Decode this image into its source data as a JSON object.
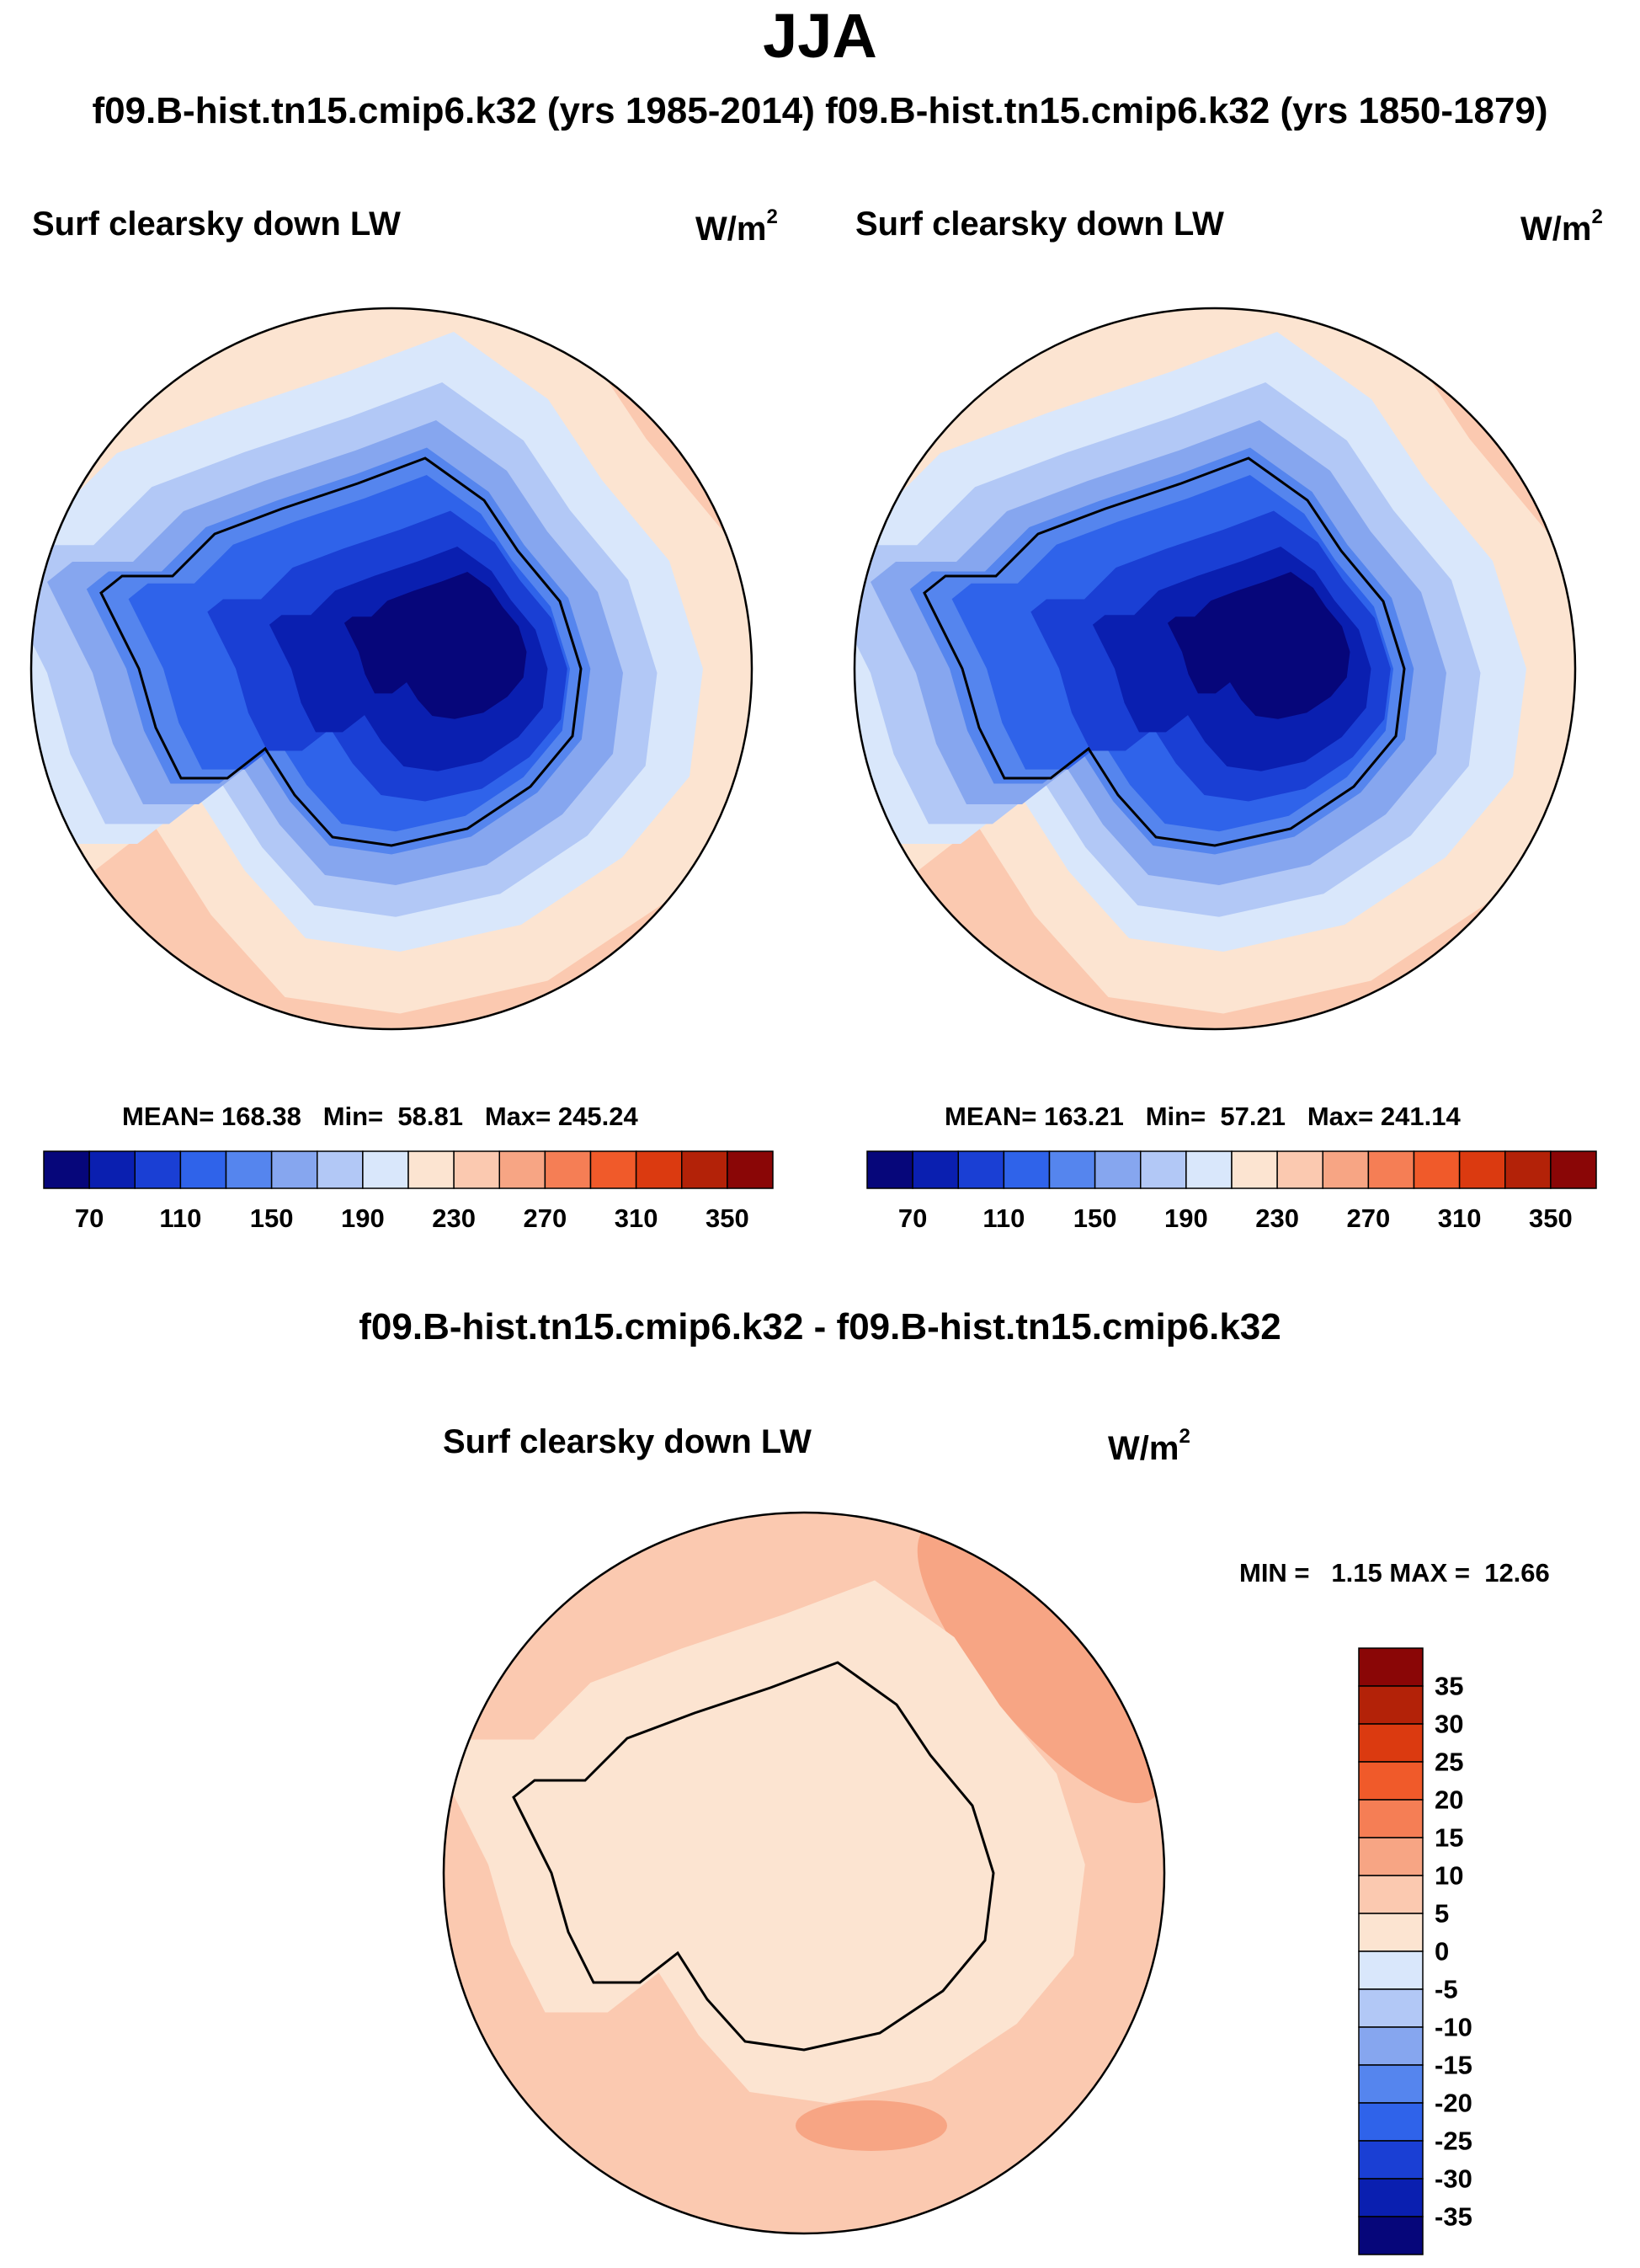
{
  "header": {
    "title": "JJA",
    "subtitle": "f09.B-hist.tn15.cmip6.k32 (yrs 1985-2014) f09.B-hist.tn15.cmip6.k32 (yrs 1850-1879)"
  },
  "colors": {
    "levels_abs": [
      "#06067a",
      "#0a1fb0",
      "#1a3fd4",
      "#2f63ea",
      "#5585ee",
      "#86a6ef",
      "#b2c8f6",
      "#d9e7fb",
      "#fce4d1",
      "#fbc9b0",
      "#f7a584",
      "#f57e55",
      "#f05a2a",
      "#db3a10",
      "#b32208",
      "#8a0606"
    ],
    "levels_diff": [
      "#06067a",
      "#0a1fb0",
      "#1a3fd4",
      "#2f63ea",
      "#5585ee",
      "#86a6ef",
      "#b2c8f6",
      "#d9e7fb",
      "#fce4d1",
      "#fbc9b0",
      "#f7a584",
      "#f57e55",
      "#f05a2a",
      "#db3a10",
      "#b32208",
      "#8a0606"
    ]
  },
  "chart_data": [
    {
      "type": "heatmap",
      "projection": "south-polar-stereographic",
      "title": "Surf clearsky down LW",
      "units_base": "W/m",
      "units_exp": "2",
      "stats": {
        "mean_label": "MEAN=",
        "mean": "168.38",
        "min_label": "Min=",
        "min": "58.81",
        "max_label": "Max=",
        "max": "245.24"
      },
      "colorbar": {
        "orientation": "horizontal",
        "levels": [
          70,
          90,
          110,
          130,
          150,
          170,
          190,
          210,
          230,
          250,
          270,
          290,
          310,
          330,
          350
        ],
        "tick_labels": [
          "70",
          "110",
          "150",
          "190",
          "230",
          "270",
          "310",
          "350"
        ]
      },
      "field_profile_levels": [
        0,
        1,
        2,
        3,
        4,
        5,
        6,
        7,
        8,
        9
      ]
    },
    {
      "type": "heatmap",
      "projection": "south-polar-stereographic",
      "title": "Surf clearsky down LW",
      "units_base": "W/m",
      "units_exp": "2",
      "stats": {
        "mean_label": "MEAN=",
        "mean": "163.21",
        "min_label": "Min=",
        "min": "57.21",
        "max_label": "Max=",
        "max": "241.14"
      },
      "colorbar": {
        "orientation": "horizontal",
        "levels": [
          70,
          90,
          110,
          130,
          150,
          170,
          190,
          210,
          230,
          250,
          270,
          290,
          310,
          330,
          350
        ],
        "tick_labels": [
          "70",
          "110",
          "150",
          "190",
          "230",
          "270",
          "310",
          "350"
        ]
      },
      "field_profile_levels": [
        0,
        1,
        2,
        3,
        4,
        5,
        6,
        7,
        8,
        9
      ]
    },
    {
      "type": "heatmap",
      "projection": "south-polar-stereographic",
      "heading": "f09.B-hist.tn15.cmip6.k32 - f09.B-hist.tn15.cmip6.k32",
      "title": "Surf clearsky down LW",
      "units_base": "W/m",
      "units_exp": "2",
      "stats": {
        "min_label": "MIN =",
        "min": "1.15",
        "max_label": "MAX =",
        "max": "12.66"
      },
      "colorbar": {
        "orientation": "vertical",
        "levels": [
          -35,
          -30,
          -25,
          -20,
          -15,
          -10,
          -5,
          0,
          5,
          10,
          15,
          20,
          25,
          30,
          35
        ],
        "tick_labels": [
          "35",
          "30",
          "25",
          "20",
          "15",
          "10",
          "5",
          "0",
          "-5",
          "-10",
          "-15",
          "-20",
          "-25",
          "-30",
          "-35"
        ]
      }
    }
  ]
}
